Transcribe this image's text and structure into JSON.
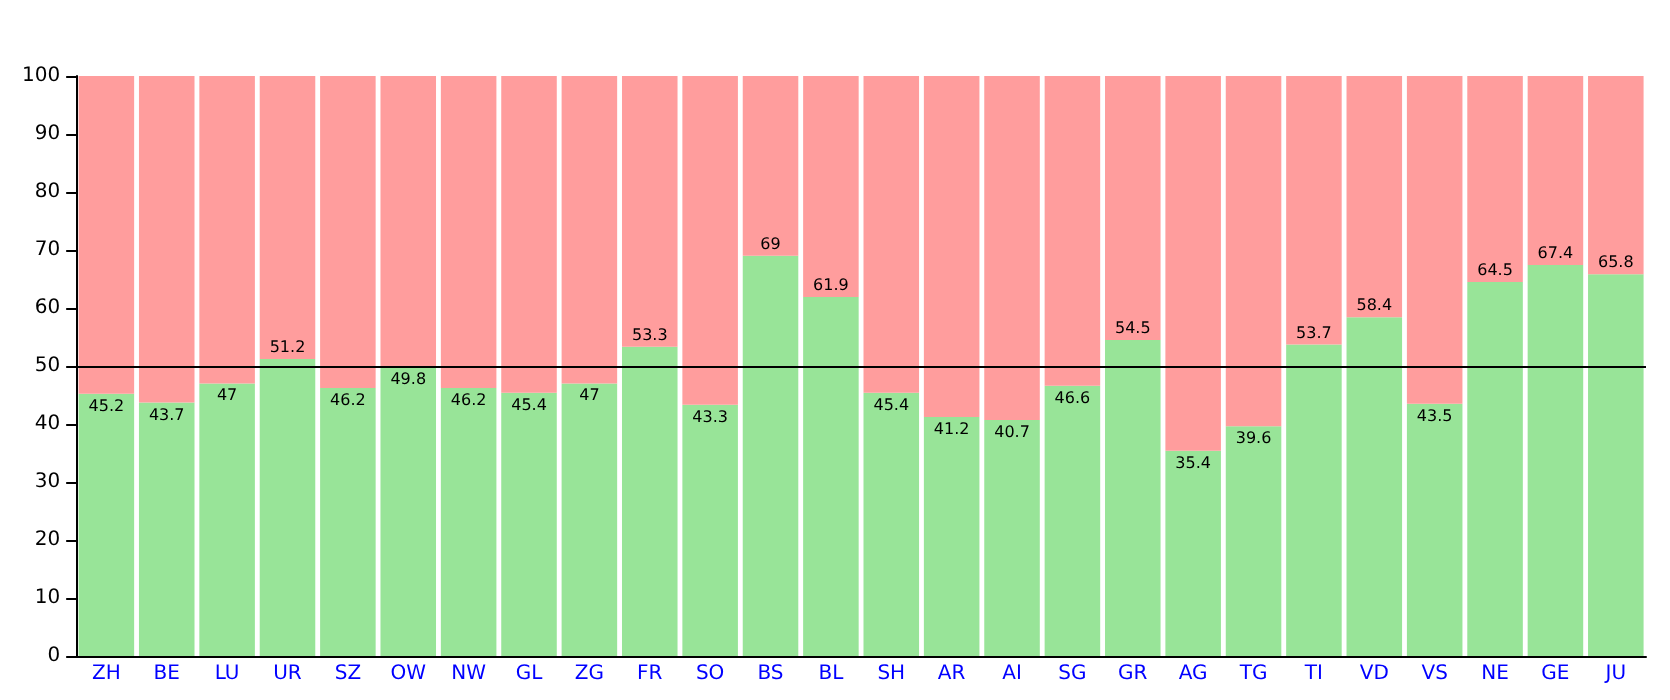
{
  "chart_data": {
    "type": "bar",
    "stacked": true,
    "categories": [
      "ZH",
      "BE",
      "LU",
      "UR",
      "SZ",
      "OW",
      "NW",
      "GL",
      "ZG",
      "FR",
      "SO",
      "BS",
      "BL",
      "SH",
      "AR",
      "AI",
      "SG",
      "GR",
      "AG",
      "TG",
      "TI",
      "VD",
      "VS",
      "NE",
      "GE",
      "JU"
    ],
    "series": [
      {
        "color": "#98e498",
        "values": [
          45.2,
          43.7,
          47,
          51.2,
          46.2,
          49.8,
          46.2,
          45.4,
          47,
          53.3,
          43.3,
          69,
          61.9,
          45.4,
          41.2,
          40.7,
          46.6,
          54.5,
          35.4,
          39.6,
          53.7,
          58.4,
          43.5,
          64.5,
          67.4,
          65.8
        ],
        "value_labels": [
          "45.2",
          "43.7",
          "47",
          "51.2",
          "46.2",
          "49.8",
          "46.2",
          "45.4",
          "47",
          "53.3",
          "43.3",
          "69",
          "61.9",
          "45.4",
          "41.2",
          "40.7",
          "46.6",
          "54.5",
          "35.4",
          "39.6",
          "53.7",
          "58.4",
          "43.5",
          "64.5",
          "67.4",
          "65.8"
        ]
      },
      {
        "color": "#ff9d9d",
        "values": [
          54.8,
          56.3,
          53,
          48.8,
          53.8,
          50.2,
          53.8,
          54.6,
          53,
          46.7,
          56.7,
          31,
          38.1,
          54.6,
          58.8,
          59.3,
          53.4,
          45.5,
          64.6,
          60.4,
          46.3,
          41.6,
          56.5,
          35.5,
          32.6,
          34.2
        ]
      }
    ],
    "ylim": [
      0,
      100
    ],
    "yticks": [
      0,
      10,
      20,
      30,
      40,
      50,
      60,
      70,
      80,
      90,
      100
    ],
    "ref_lines": [
      {
        "axis": "y",
        "value": 50,
        "color": "#000000"
      }
    ]
  }
}
